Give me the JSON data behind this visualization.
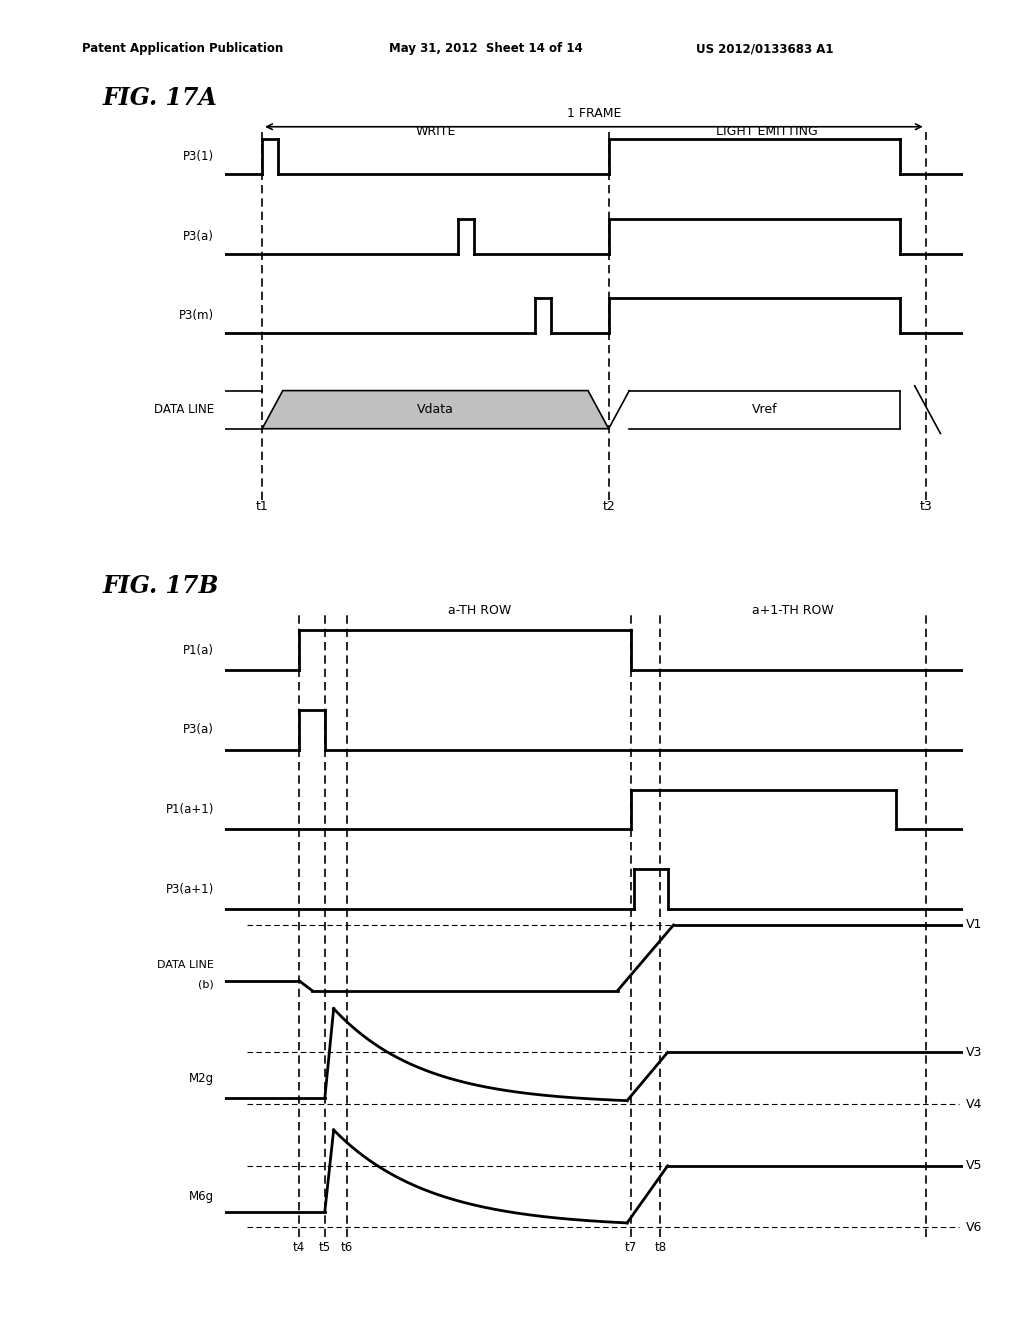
{
  "header_left": "Patent Application Publication",
  "header_mid": "May 31, 2012  Sheet 14 of 14",
  "header_right": "US 2012/0133683 A1",
  "fig17a_title": "FIG. 17A",
  "fig17b_title": "FIG. 17B",
  "background": "#ffffff"
}
